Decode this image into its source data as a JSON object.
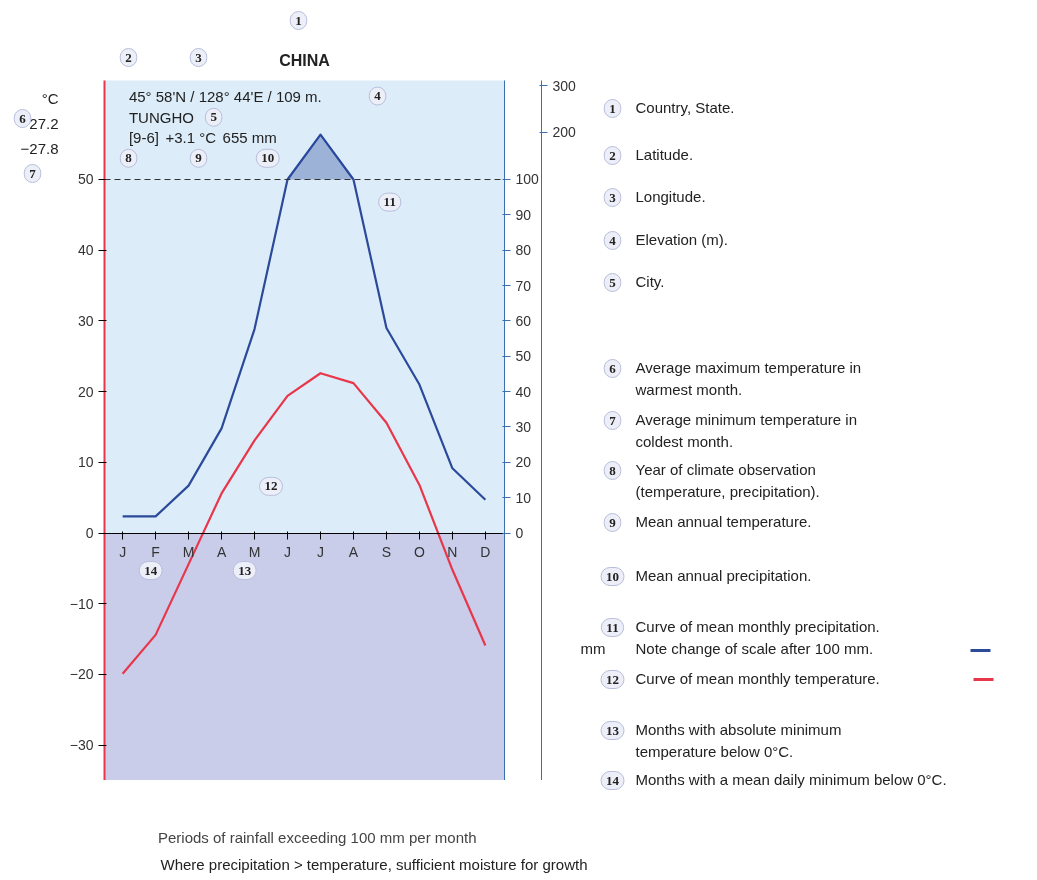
{
  "chart_data": {
    "type": "line",
    "title": "CHINA",
    "categories": [
      "J",
      "F",
      "M",
      "A",
      "M",
      "J",
      "J",
      "A",
      "S",
      "O",
      "N",
      "D"
    ],
    "ylim": [
      -35,
      64
    ],
    "yticks": [
      {
        "value": -30,
        "label": "−30"
      },
      {
        "value": -20,
        "label": "−20"
      },
      {
        "value": -10,
        "label": "−10"
      },
      0,
      10,
      20,
      30,
      40,
      50
    ],
    "y2lim": [
      -70,
      128
    ],
    "y2ticks": [
      0,
      10,
      20,
      30,
      40,
      50,
      60,
      70,
      80,
      90,
      100
    ],
    "y3lim": [
      -1175,
      310
    ],
    "y3ticks": [
      200,
      300
    ],
    "legend": "bottom",
    "series": [
      {
        "color": "#e8364a",
        "values": [
          -19.9,
          -14.4,
          -4.4,
          5.6,
          13.1,
          19.4,
          22.6,
          21.2,
          15.6,
          6.8,
          -5.2,
          -15.9
        ]
      },
      {
        "axis": "y2",
        "color": "#2b4a9a",
        "values": [
          4.7,
          4.7,
          13.4,
          29.6,
          57.7,
          100,
          null,
          100,
          58,
          42,
          18.3,
          9.4
        ]
      },
      {
        "name": "Periods of rainfall exceeding 100 mm per month",
        "axis": "y3",
        "color": "#29479c",
        "values": [
          null,
          null,
          null,
          null,
          null,
          100,
          195,
          100,
          null,
          null,
          null,
          null
        ],
        "lower": [
          null,
          null,
          null,
          null,
          null,
          100,
          100,
          100,
          null,
          null,
          null,
          null
        ],
        "upper": [
          null,
          null,
          null,
          null,
          null,
          100,
          195,
          100,
          null,
          null,
          null,
          null
        ]
      }
    ],
    "bands": [
      {
        "axis": "y",
        "from": -35,
        "to": 0,
        "color": "#c9cdea"
      }
    ],
    "ref_lines": [
      {
        "axis": "y",
        "value": 50,
        "line_style": "dashed",
        "color": "#333333"
      }
    ],
    "annotations": [
      "°C",
      "45° 58'N / 128° 44'E / 109 m.",
      "TUNGHO",
      "27.2",
      "−27.8",
      "[9-6]",
      "+3.1 °C",
      "655 mm",
      "mm",
      "1",
      "2",
      "3",
      "4",
      "5",
      "6",
      "7",
      "8",
      "9",
      "10",
      "11",
      "12",
      "13",
      "14",
      "Country, State.",
      "Latitude.",
      "Longitude.",
      "Elevation (m).",
      "City.",
      "Average maximum temperature in\nwarmest month.",
      "Average minimum temperature in\ncoldest month.",
      "Year of climate observation\n(temperature, precipitation).",
      "Mean annual temperature.",
      "Mean annual precipitation.",
      "Curve of mean monthly precipitation.\nNote change of scale after 100 mm.",
      "Curve of mean monthly temperature.",
      "Months with absolute minimum\ntemperature below 0°C.",
      "Months with a mean daily minimum below 0°C.",
      "Where precipitation > temperature, sufficient moisture for growth"
    ]
  }
}
